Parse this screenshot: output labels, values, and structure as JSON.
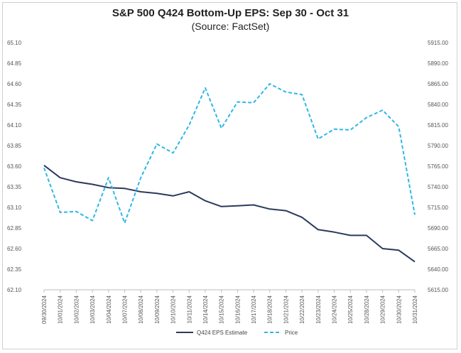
{
  "chart_data": {
    "type": "line",
    "title": "S&P 500 Q424 Bottom-Up EPS: Sep 30 - Oct 31",
    "subtitle": "(Source: FactSet)",
    "x": [
      "09/30/2024",
      "10/01/2024",
      "10/02/2024",
      "10/03/2024",
      "10/04/2024",
      "10/07/2024",
      "10/08/2024",
      "10/09/2024",
      "10/10/2024",
      "10/11/2024",
      "10/14/2024",
      "10/15/2024",
      "10/16/2024",
      "10/17/2024",
      "10/18/2024",
      "10/21/2024",
      "10/22/2024",
      "10/23/2024",
      "10/24/2024",
      "10/25/2024",
      "10/28/2024",
      "10/29/2024",
      "10/30/2024",
      "10/31/2024"
    ],
    "x_tick_labels": [
      "09/30/2024",
      "10/01/2024",
      "10/02/2024",
      "10/03/2024",
      "10/04/2024",
      "10/07/2024",
      "10/08/2024",
      "10/09/2024",
      "10/10/2024",
      "10/11/2024",
      "10/14/2024",
      "10/15/2024",
      "10/16/2024",
      "10/17/2024",
      "10/18/2024",
      "10/21/2024",
      "10/22/2024",
      "10/23/2024",
      "10/24/2024",
      "10/25/2024",
      "10/28/2024",
      "10/29/2024",
      "10/30/2024",
      "10/31/2024"
    ],
    "left_axis": {
      "ylim": [
        62.1,
        65.1
      ],
      "ticks": [
        "65.10",
        "64.85",
        "64.60",
        "64.35",
        "64.10",
        "63.85",
        "63.60",
        "63.35",
        "63.10",
        "62.85",
        "62.60",
        "62.35",
        "62.10"
      ]
    },
    "right_axis": {
      "ylim": [
        5615,
        5915
      ],
      "ticks": [
        "5915.00",
        "5890.00",
        "5865.00",
        "5840.00",
        "5815.00",
        "5790.00",
        "5765.00",
        "5740.00",
        "5715.00",
        "5690.00",
        "5665.00",
        "5640.00",
        "5615.00"
      ]
    },
    "series": [
      {
        "name": "Q424 EPS Estimate",
        "axis": "left",
        "color": "#2b3a5c",
        "style": "solid",
        "values": [
          63.61,
          63.46,
          63.41,
          63.38,
          63.34,
          63.33,
          63.29,
          63.27,
          63.24,
          63.29,
          63.18,
          63.11,
          63.12,
          63.13,
          63.08,
          63.06,
          62.98,
          62.83,
          62.8,
          62.76,
          62.76,
          62.6,
          62.58,
          62.44
        ]
      },
      {
        "name": "Price",
        "axis": "right",
        "color": "#2fb7e6",
        "style": "dashed",
        "values": [
          5763,
          5709,
          5710,
          5699,
          5751,
          5696,
          5751,
          5792,
          5781,
          5815,
          5860,
          5811,
          5843,
          5842,
          5865,
          5855,
          5852,
          5798,
          5810,
          5809,
          5824,
          5833,
          5813,
          5706
        ]
      }
    ],
    "grid": false,
    "legend": "bottom-center"
  }
}
